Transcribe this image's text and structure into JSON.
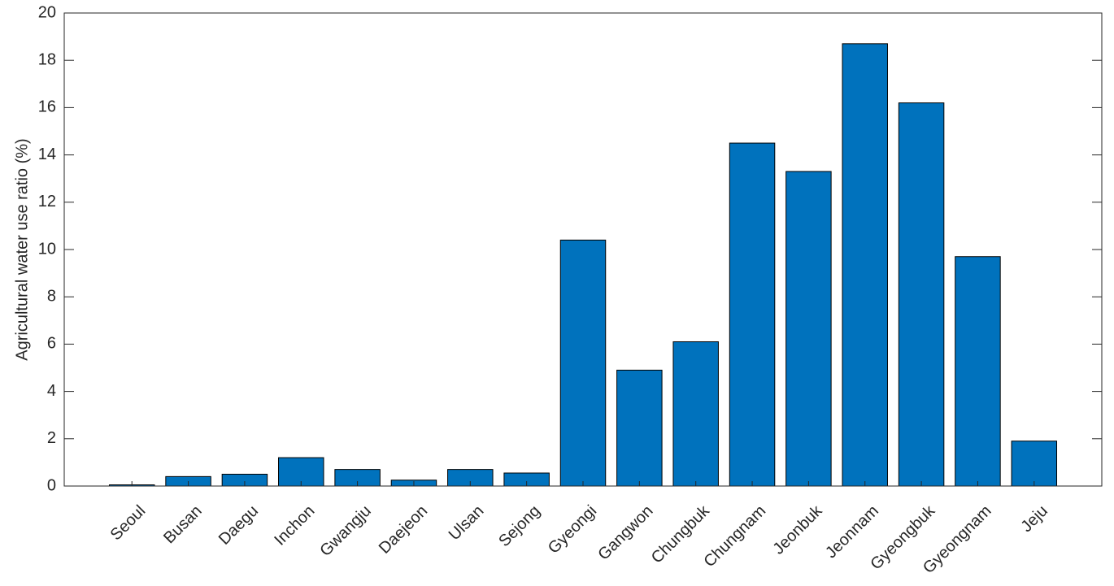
{
  "chart_data": {
    "type": "bar",
    "ylabel": "Agricultural water use ratio (%)",
    "categories": [
      "Seoul",
      "Busan",
      "Daegu",
      "Inchon",
      "Gwangju",
      "Daejeon",
      "Ulsan",
      "Sejong",
      "Gyeongi",
      "Gangwon",
      "Chungbuk",
      "Chungnam",
      "Jeonbuk",
      "Jeonnam",
      "Gyeongbuk",
      "Gyeongnam",
      "Jeju"
    ],
    "values": [
      0.05,
      0.4,
      0.5,
      1.2,
      0.7,
      0.25,
      0.7,
      0.55,
      10.4,
      4.9,
      6.1,
      14.5,
      13.3,
      18.7,
      16.2,
      9.7,
      1.9
    ],
    "color": "#0072bd",
    "ylim": [
      0,
      20
    ],
    "yticks": [
      0,
      2,
      4,
      6,
      8,
      10,
      12,
      14,
      16,
      18,
      20
    ],
    "grid": false
  }
}
